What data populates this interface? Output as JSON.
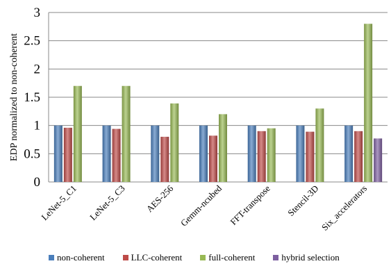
{
  "chart_data": {
    "type": "bar",
    "title": "",
    "xlabel": "",
    "ylabel": "EDP normalized to non-coherent",
    "ylim": [
      0,
      3
    ],
    "yticks": [
      "0",
      "0.5",
      "1",
      "1.5",
      "2",
      "2.5",
      "3"
    ],
    "grid": "horizontal",
    "legend_position": "bottom",
    "categories": [
      "LeNet-5_C1",
      "LeNet-5_C3",
      "AES-256",
      "Gemm-ncubed",
      "FFT-transpose",
      "Stencil-3D",
      "Six_accelerators"
    ],
    "series": [
      {
        "name": "non-coherent",
        "color": "#4a7ebb",
        "values": [
          1.0,
          1.0,
          1.0,
          1.0,
          1.0,
          1.0,
          1.0
        ]
      },
      {
        "name": "LLC-coherent",
        "color": "#be4b48",
        "values": [
          0.96,
          0.94,
          0.8,
          0.82,
          0.9,
          0.89,
          0.9
        ]
      },
      {
        "name": "full-coherent",
        "color": "#98b954",
        "values": [
          1.7,
          1.7,
          1.39,
          1.2,
          0.95,
          1.3,
          2.8
        ]
      },
      {
        "name": "hybrid selection",
        "color": "#7d5fa0",
        "values": [
          null,
          null,
          null,
          null,
          null,
          null,
          0.77
        ]
      }
    ]
  }
}
